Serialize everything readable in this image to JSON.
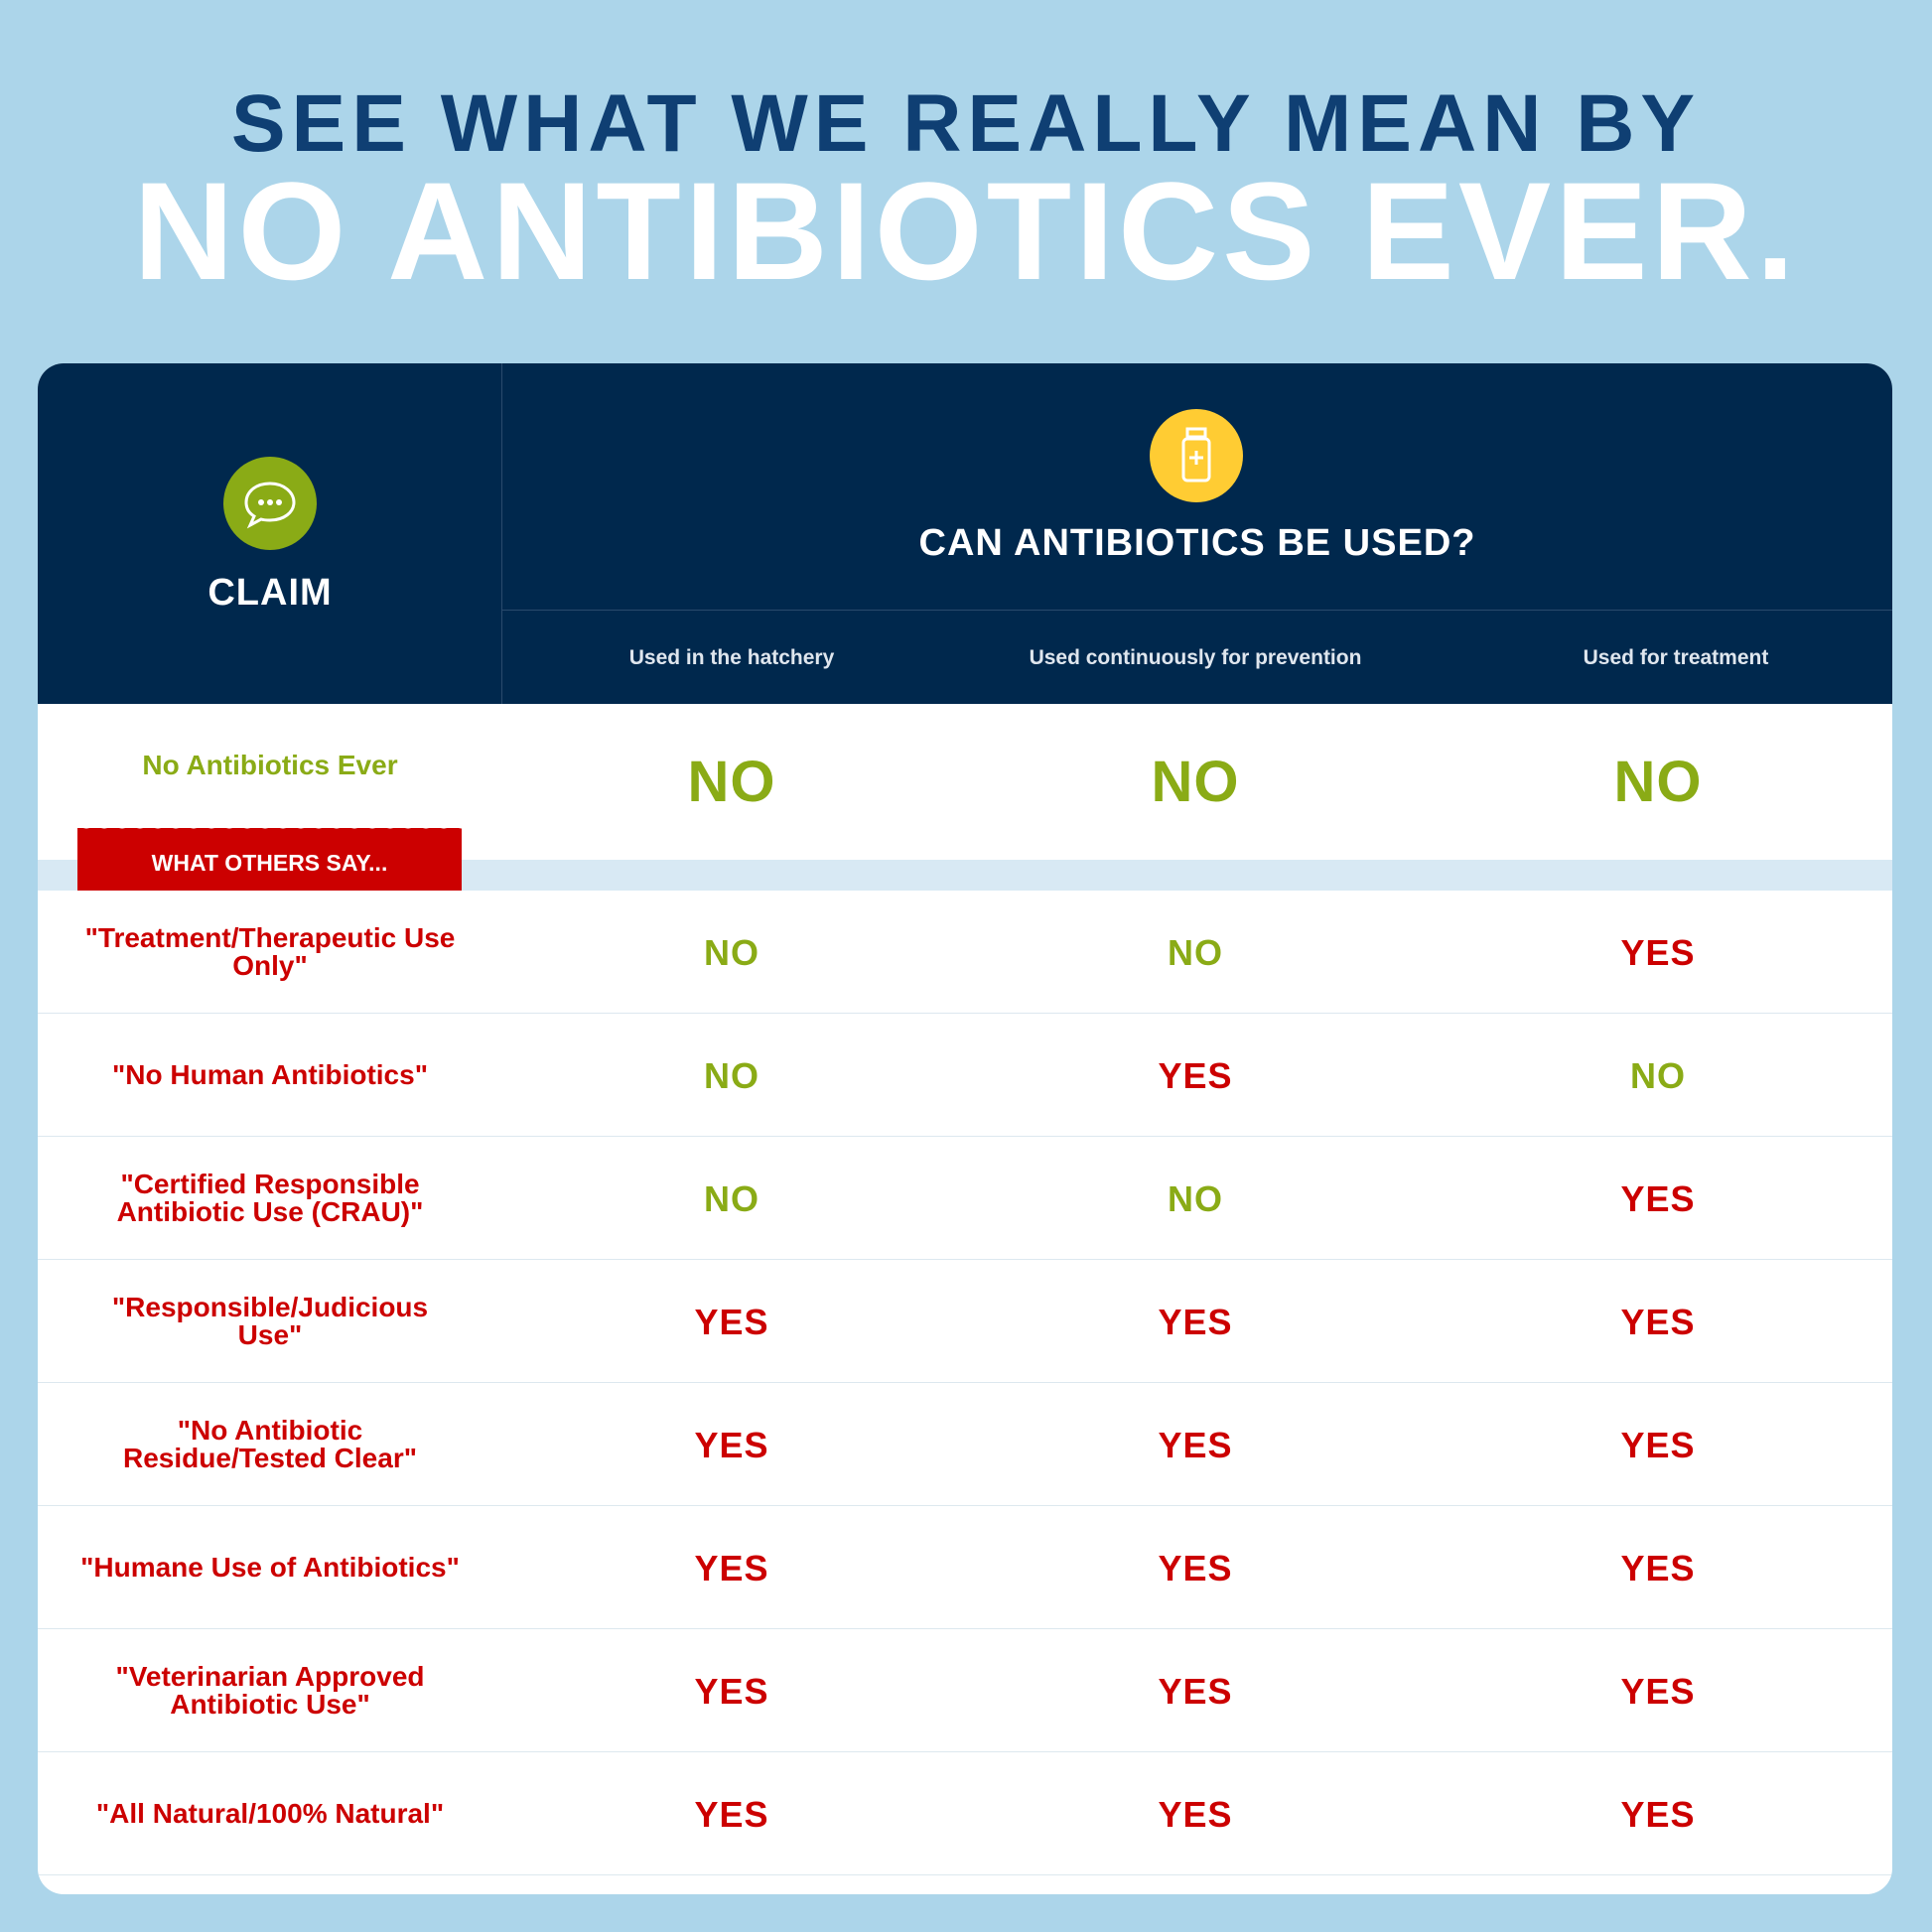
{
  "title": {
    "line1": "SEE WHAT WE REALLY MEAN BY",
    "line2": "NO ANTIBIOTICS EVER."
  },
  "colors": {
    "background": "#acd5ea",
    "navy": "#00284d",
    "green": "#8aab16",
    "red": "#cc0000",
    "yellow": "#ffcc33"
  },
  "header": {
    "claim_label": "CLAIM",
    "claim_icon": "speech-bubble-icon",
    "question": "CAN ANTIBIOTICS BE USED?",
    "question_icon": "medicine-bottle-icon",
    "columns": [
      "Used in the hatchery",
      "Used continuously for prevention",
      "Used for treatment"
    ]
  },
  "featured": {
    "claim": "No Antibiotics Ever",
    "values": [
      "NO",
      "NO",
      "NO"
    ]
  },
  "others_label": "WHAT OTHERS SAY...",
  "rows": [
    {
      "claim": "\"Treatment/Therapeutic Use Only\"",
      "values": [
        "NO",
        "NO",
        "YES"
      ]
    },
    {
      "claim": "\"No Human Antibiotics\"",
      "values": [
        "NO",
        "YES",
        "NO"
      ]
    },
    {
      "claim": "\"Certified Responsible Antibiotic Use (CRAU)\"",
      "values": [
        "NO",
        "NO",
        "YES"
      ]
    },
    {
      "claim": "\"Responsible/Judicious Use\"",
      "values": [
        "YES",
        "YES",
        "YES"
      ]
    },
    {
      "claim": "\"No Antibiotic Residue/Tested Clear\"",
      "values": [
        "YES",
        "YES",
        "YES"
      ]
    },
    {
      "claim": "\"Humane Use of Antibiotics\"",
      "values": [
        "YES",
        "YES",
        "YES"
      ]
    },
    {
      "claim": "\"Veterinarian Approved Antibiotic Use\"",
      "values": [
        "YES",
        "YES",
        "YES"
      ]
    },
    {
      "claim": "\"All Natural/100% Natural\"",
      "values": [
        "YES",
        "YES",
        "YES"
      ]
    }
  ]
}
